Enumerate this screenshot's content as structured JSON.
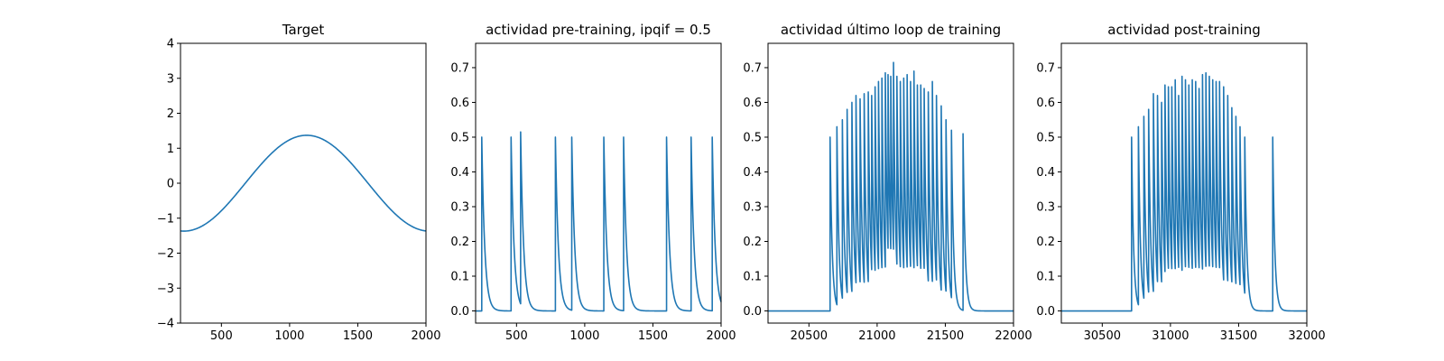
{
  "colors": {
    "series": "#1f77b4",
    "axis": "#000000",
    "background": "#ffffff"
  },
  "chart_data": [
    {
      "type": "line",
      "title": "Target",
      "xlabel": "",
      "ylabel": "",
      "xlim": [
        200,
        2000
      ],
      "ylim": [
        -4,
        4
      ],
      "xticks": [
        500,
        1000,
        1500,
        2000
      ],
      "yticks": [
        -4,
        -3,
        -2,
        -1,
        0,
        1,
        2,
        3,
        4
      ],
      "grid": false,
      "series": [
        {
          "kind": "sine",
          "amplitude": 1.37,
          "period": 1800,
          "phase_x": 1125,
          "x_start": 200,
          "x_end": 2000
        }
      ]
    },
    {
      "type": "line",
      "title": "actividad pre-training, ipqif = 0.5",
      "xlabel": "",
      "ylabel": "",
      "xlim": [
        200,
        2000
      ],
      "ylim": [
        -0.035,
        0.77
      ],
      "xticks": [
        500,
        1000,
        1500,
        2000
      ],
      "yticks": [
        0.0,
        0.1,
        0.2,
        0.3,
        0.4,
        0.5,
        0.6,
        0.7
      ],
      "grid": false,
      "series": [
        {
          "kind": "spikes",
          "x_start": 200,
          "x_end": 2000,
          "baseline": 0,
          "decay": 22,
          "spikes": [
            {
              "x": 245,
              "peak": 0.5
            },
            {
              "x": 460,
              "peak": 0.5
            },
            {
              "x": 530,
              "peak": 0.515
            },
            {
              "x": 785,
              "peak": 0.5
            },
            {
              "x": 905,
              "peak": 0.5
            },
            {
              "x": 1140,
              "peak": 0.5
            },
            {
              "x": 1285,
              "peak": 0.5
            },
            {
              "x": 1600,
              "peak": 0.5
            },
            {
              "x": 1780,
              "peak": 0.5
            },
            {
              "x": 1935,
              "peak": 0.5
            }
          ]
        }
      ]
    },
    {
      "type": "line",
      "title": "actividad último loop de training",
      "xlabel": "",
      "ylabel": "",
      "xlim": [
        20200,
        22000
      ],
      "ylim": [
        -0.035,
        0.77
      ],
      "xticks": [
        20500,
        21000,
        21500,
        22000
      ],
      "yticks": [
        0.0,
        0.1,
        0.2,
        0.3,
        0.4,
        0.5,
        0.6,
        0.7
      ],
      "grid": false,
      "series": [
        {
          "kind": "spikes",
          "x_start": 20200,
          "x_end": 22000,
          "baseline": 0,
          "decay": 15,
          "spikes": [
            {
              "x": 20655,
              "peak": 0.5
            },
            {
              "x": 20705,
              "peak": 0.53
            },
            {
              "x": 20745,
              "peak": 0.55
            },
            {
              "x": 20780,
              "peak": 0.58
            },
            {
              "x": 20815,
              "peak": 0.6
            },
            {
              "x": 20845,
              "peak": 0.62
            },
            {
              "x": 20875,
              "peak": 0.61
            },
            {
              "x": 20905,
              "peak": 0.625
            },
            {
              "x": 20935,
              "peak": 0.63
            },
            {
              "x": 20960,
              "peak": 0.62
            },
            {
              "x": 20985,
              "peak": 0.645
            },
            {
              "x": 21010,
              "peak": 0.66
            },
            {
              "x": 21035,
              "peak": 0.67
            },
            {
              "x": 21060,
              "peak": 0.685
            },
            {
              "x": 21080,
              "peak": 0.68
            },
            {
              "x": 21100,
              "peak": 0.675
            },
            {
              "x": 21120,
              "peak": 0.715
            },
            {
              "x": 21145,
              "peak": 0.675
            },
            {
              "x": 21170,
              "peak": 0.66
            },
            {
              "x": 21195,
              "peak": 0.67
            },
            {
              "x": 21220,
              "peak": 0.68
            },
            {
              "x": 21245,
              "peak": 0.66
            },
            {
              "x": 21270,
              "peak": 0.69
            },
            {
              "x": 21295,
              "peak": 0.65
            },
            {
              "x": 21320,
              "peak": 0.65
            },
            {
              "x": 21345,
              "peak": 0.64
            },
            {
              "x": 21375,
              "peak": 0.63
            },
            {
              "x": 21405,
              "peak": 0.66
            },
            {
              "x": 21435,
              "peak": 0.62
            },
            {
              "x": 21470,
              "peak": 0.59
            },
            {
              "x": 21505,
              "peak": 0.55
            },
            {
              "x": 21545,
              "peak": 0.52
            },
            {
              "x": 21630,
              "peak": 0.51
            }
          ]
        }
      ]
    },
    {
      "type": "line",
      "title": "actividad post-training",
      "xlabel": "",
      "ylabel": "",
      "xlim": [
        30200,
        32000
      ],
      "ylim": [
        -0.035,
        0.77
      ],
      "xticks": [
        30500,
        31000,
        31500,
        32000
      ],
      "yticks": [
        0.0,
        0.1,
        0.2,
        0.3,
        0.4,
        0.5,
        0.6,
        0.7
      ],
      "grid": false,
      "series": [
        {
          "kind": "spikes",
          "x_start": 30200,
          "x_end": 32000,
          "baseline": 0,
          "decay": 15,
          "spikes": [
            {
              "x": 30715,
              "peak": 0.5
            },
            {
              "x": 30765,
              "peak": 0.53
            },
            {
              "x": 30805,
              "peak": 0.56
            },
            {
              "x": 30840,
              "peak": 0.58
            },
            {
              "x": 30875,
              "peak": 0.625
            },
            {
              "x": 30905,
              "peak": 0.62
            },
            {
              "x": 30935,
              "peak": 0.6
            },
            {
              "x": 30960,
              "peak": 0.65
            },
            {
              "x": 30985,
              "peak": 0.645
            },
            {
              "x": 31010,
              "peak": 0.645
            },
            {
              "x": 31035,
              "peak": 0.665
            },
            {
              "x": 31060,
              "peak": 0.62
            },
            {
              "x": 31085,
              "peak": 0.675
            },
            {
              "x": 31110,
              "peak": 0.665
            },
            {
              "x": 31135,
              "peak": 0.65
            },
            {
              "x": 31160,
              "peak": 0.665
            },
            {
              "x": 31185,
              "peak": 0.66
            },
            {
              "x": 31210,
              "peak": 0.64
            },
            {
              "x": 31235,
              "peak": 0.68
            },
            {
              "x": 31260,
              "peak": 0.685
            },
            {
              "x": 31285,
              "peak": 0.675
            },
            {
              "x": 31310,
              "peak": 0.665
            },
            {
              "x": 31335,
              "peak": 0.66
            },
            {
              "x": 31360,
              "peak": 0.66
            },
            {
              "x": 31390,
              "peak": 0.645
            },
            {
              "x": 31420,
              "peak": 0.62
            },
            {
              "x": 31450,
              "peak": 0.585
            },
            {
              "x": 31480,
              "peak": 0.56
            },
            {
              "x": 31510,
              "peak": 0.53
            },
            {
              "x": 31545,
              "peak": 0.5
            },
            {
              "x": 31750,
              "peak": 0.5
            }
          ]
        }
      ]
    }
  ]
}
